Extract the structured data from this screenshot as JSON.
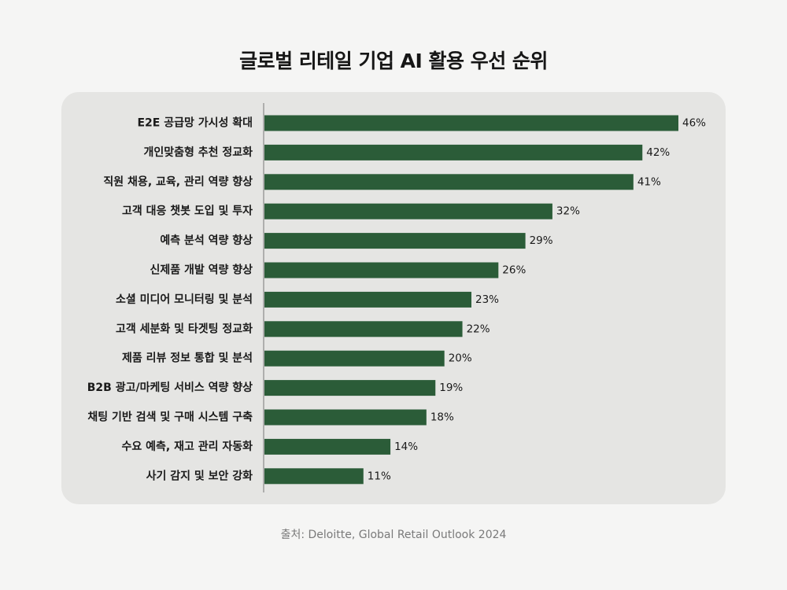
{
  "title": "글로벌 리테일 기업 AI 활용 우선 순위",
  "source": "출처: Deloitte, Global Retail Outlook 2024",
  "colors": {
    "bar": "#2b5c38",
    "panel": "#e5e5e3",
    "background": "#f5f5f4",
    "axis": "#777777"
  },
  "chart_data": {
    "type": "bar",
    "orientation": "horizontal",
    "value_suffix": "%",
    "xlim": [
      0,
      46
    ],
    "grid": false,
    "legend": "none",
    "categories": [
      "E2E 공급망 가시성 확대",
      "개인맞춤형 추천 정교화",
      "직원 채용, 교육, 관리 역량 향상",
      "고객 대응 챗봇 도입 및 투자",
      "예측 분석 역량 향상",
      "신제품 개발 역량 향상",
      "소셜 미디어 모니터링 및 분석",
      "고객 세분화 및 타겟팅 정교화",
      "제품 리뷰 정보 통합 및 분석",
      "B2B 광고/마케팅 서비스 역량 향상",
      "채팅 기반 검색 및 구매 시스템 구축",
      "수요 예측, 재고 관리 자동화",
      "사기 감지 및 보안 강화"
    ],
    "values": [
      46,
      42,
      41,
      32,
      29,
      26,
      23,
      22,
      20,
      19,
      18,
      14,
      11
    ]
  }
}
